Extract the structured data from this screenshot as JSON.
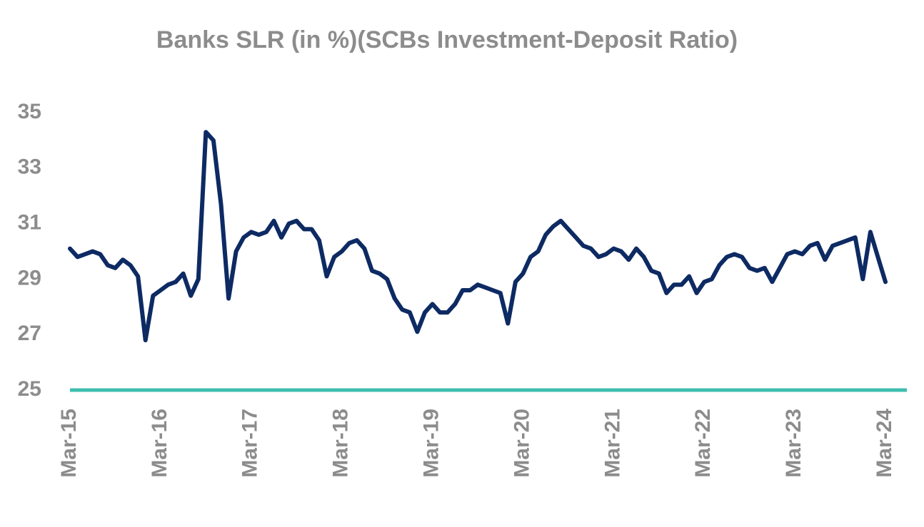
{
  "chart_data": {
    "type": "line",
    "title": "Banks SLR (in %)(SCBs Investment-Deposit Ratio)",
    "categories": [
      "Mar-15",
      null,
      null,
      null,
      null,
      null,
      null,
      null,
      null,
      null,
      null,
      null,
      "Mar-16",
      null,
      null,
      null,
      null,
      null,
      null,
      null,
      null,
      null,
      null,
      null,
      "Mar-17",
      null,
      null,
      null,
      null,
      null,
      null,
      null,
      null,
      null,
      null,
      null,
      "Mar-18",
      null,
      null,
      null,
      null,
      null,
      null,
      null,
      null,
      null,
      null,
      null,
      "Mar-19",
      null,
      null,
      null,
      null,
      null,
      null,
      null,
      null,
      null,
      null,
      null,
      "Mar-20",
      null,
      null,
      null,
      null,
      null,
      null,
      null,
      null,
      null,
      null,
      null,
      "Mar-21",
      null,
      null,
      null,
      null,
      null,
      null,
      null,
      null,
      null,
      null,
      null,
      "Mar-22",
      null,
      null,
      null,
      null,
      null,
      null,
      null,
      null,
      null,
      null,
      null,
      "Mar-23",
      null,
      null,
      null,
      null,
      null,
      null,
      null,
      null,
      null,
      null,
      null,
      "Mar-24"
    ],
    "series": [
      {
        "color": "#0d2a63",
        "values": [
          30.1,
          29.8,
          29.9,
          30.0,
          29.9,
          29.5,
          29.4,
          29.7,
          29.5,
          29.1,
          26.8,
          28.4,
          28.6,
          28.8,
          28.9,
          29.2,
          28.4,
          29.0,
          34.3,
          34.0,
          31.7,
          28.3,
          30.0,
          30.5,
          30.7,
          30.6,
          30.7,
          31.1,
          30.5,
          31.0,
          31.1,
          30.8,
          30.8,
          30.4,
          29.1,
          29.8,
          30.0,
          30.3,
          30.4,
          30.1,
          29.3,
          29.2,
          29.0,
          28.3,
          27.9,
          27.8,
          27.1,
          27.8,
          28.1,
          27.8,
          27.8,
          28.1,
          28.6,
          28.6,
          28.8,
          28.7,
          28.6,
          28.5,
          27.4,
          28.9,
          29.2,
          29.8,
          30.0,
          30.6,
          30.9,
          31.1,
          30.8,
          30.5,
          30.2,
          30.1,
          29.8,
          29.9,
          30.1,
          30.0,
          29.7,
          30.1,
          29.8,
          29.3,
          29.2,
          28.5,
          28.8,
          28.8,
          29.1,
          28.5,
          28.9,
          29.0,
          29.5,
          29.8,
          29.9,
          29.8,
          29.4,
          29.3,
          29.4,
          28.9,
          29.4,
          29.9,
          30.0,
          29.9,
          30.2,
          30.3,
          29.7,
          30.2,
          30.3,
          30.4,
          30.5,
          29.0,
          30.7,
          29.8,
          28.9
        ]
      }
    ],
    "reference_line": {
      "value": 25,
      "color": "#3dbfaf"
    },
    "ylim": [
      25,
      35
    ],
    "yticks": [
      25,
      27,
      29,
      31,
      33,
      35
    ]
  }
}
